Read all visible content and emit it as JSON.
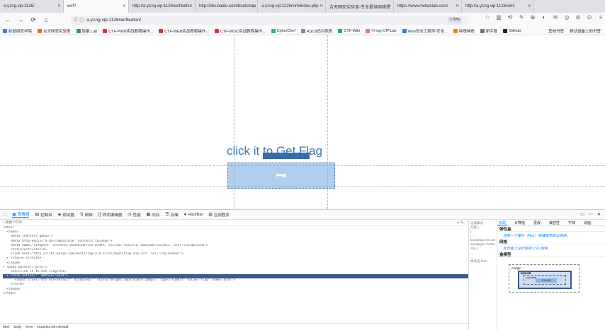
{
  "tabs": [
    {
      "label": "a.y1ng.vip:1126/"
    },
    {
      "label": "wcf?"
    },
    {
      "label": "http://a.y1ng.vip:1126/wcfbuttc"
    },
    {
      "label": "http://libs.baidu.com/bootstrap"
    },
    {
      "label": "a.y1ng.vip:1126/vim/index.php"
    },
    {
      "label": "合天网安实验室-专业提供网络安"
    },
    {
      "label": "https://www.hetianlab.com/"
    },
    {
      "label": "http://a.y1ng.vip:1126/vim/"
    }
  ],
  "url": {
    "value": "a.y1ng.vip:1126/wcfbutton/",
    "zoom": "170%"
  },
  "bookmarks": [
    {
      "label": "标题网安学院"
    },
    {
      "label": "合天网安实验室"
    },
    {
      "label": "轻量 Lab"
    },
    {
      "label": "CTF-PWN实战教程操作..."
    },
    {
      "label": "CTF-WEB实战教程操作..."
    },
    {
      "label": "CTF-MISC实战教程操作..."
    },
    {
      "label": "CyberChef"
    },
    {
      "label": "ASCII码对照表"
    },
    {
      "label": "CTF Wiki"
    },
    {
      "label": "Yi-ing-CTFLab"
    },
    {
      "label": "Web安全工程师-安全..."
    },
    {
      "label": "钟瑰神奇"
    },
    {
      "label": "新手篇"
    },
    {
      "label": "GitHub"
    }
  ],
  "bookmarks_right": [
    "其他书签",
    "移动设备上的书签"
  ],
  "page": {
    "heading": "click it to Get Flag"
  },
  "devtools": {
    "tabs": [
      {
        "label": "查看器",
        "icon": "inspector-icon"
      },
      {
        "label": "控制台",
        "icon": "console-icon"
      },
      {
        "label": "调试器",
        "icon": "debugger-icon"
      },
      {
        "label": "网络",
        "icon": "network-icon"
      },
      {
        "label": "样式编辑器",
        "icon": "style-icon"
      },
      {
        "label": "性能",
        "icon": "performance-icon"
      },
      {
        "label": "内存",
        "icon": "memory-icon"
      },
      {
        "label": "存储",
        "icon": "storage-icon"
      },
      {
        "label": "HackBar",
        "icon": "hackbar-icon"
      },
      {
        "label": "应用程序",
        "icon": "application-icon"
      }
    ],
    "search_placeholder": "搜索 HTML",
    "code_lines": [
      "<html>",
      "  <head>",
      "    <meta charset=\"gbk2u\">",
      "    <meta http-equiv=\"X-UA-Compatible\" content=\"IE=edge\">",
      "    <meta name=\"viewport\" content=\"width=device-width, initial-scale=1, maximum-scale=1, user-scalable=no\">",
      "    <title>wcf?</title>",
      "    <link href=\"http://libs.baidu.com/bootstrap/3.0.3/css/bootstrap.min.css\" rel=\"stylesheet\">",
      "  ▸ <style> </style>",
      "  </head>",
      "▾ <body bgcolor=\"grey\">",
      "    <h1>click it to Get Flag</h1>",
      "  ▾ <form action=\"\" method=\"post\">",
      "      <input class=\"btn btn-default\" disabled=\"\" style=\"height:50px;width:200px;\" type=\"submit\" value=\"flag\" name=\"auth\">",
      "    </form>",
      "  </body>",
      "</html>"
    ],
    "selected_line": 11,
    "breadcrumbs": [
      "html",
      "body",
      "form",
      "input.btn.btn-default"
    ],
    "rules_lines": [
      "过滤样式",
      "元素 {",
      "}",
      "...",
      "bootstrap.min.css:7",
      "input[type=\"submit\"]",
      ".btn {",
      "...",
      "...",
      "继承自 form"
    ],
    "side_tabs": [
      "布局",
      "计算值",
      "更改",
      "兼容性",
      "字体",
      "动画"
    ],
    "sections": [
      {
        "title": "弹性盒",
        "body": "选择一个弹性（Flex）容器或项目以继续。"
      },
      {
        "title": "网格",
        "body": "此页面上没有使用 CSS 网格"
      },
      {
        "title": "盒模型",
        "body": ""
      }
    ],
    "boxmodel": {
      "margin": "margin",
      "border": "border",
      "padding": "padding",
      "content": "200×50"
    }
  }
}
